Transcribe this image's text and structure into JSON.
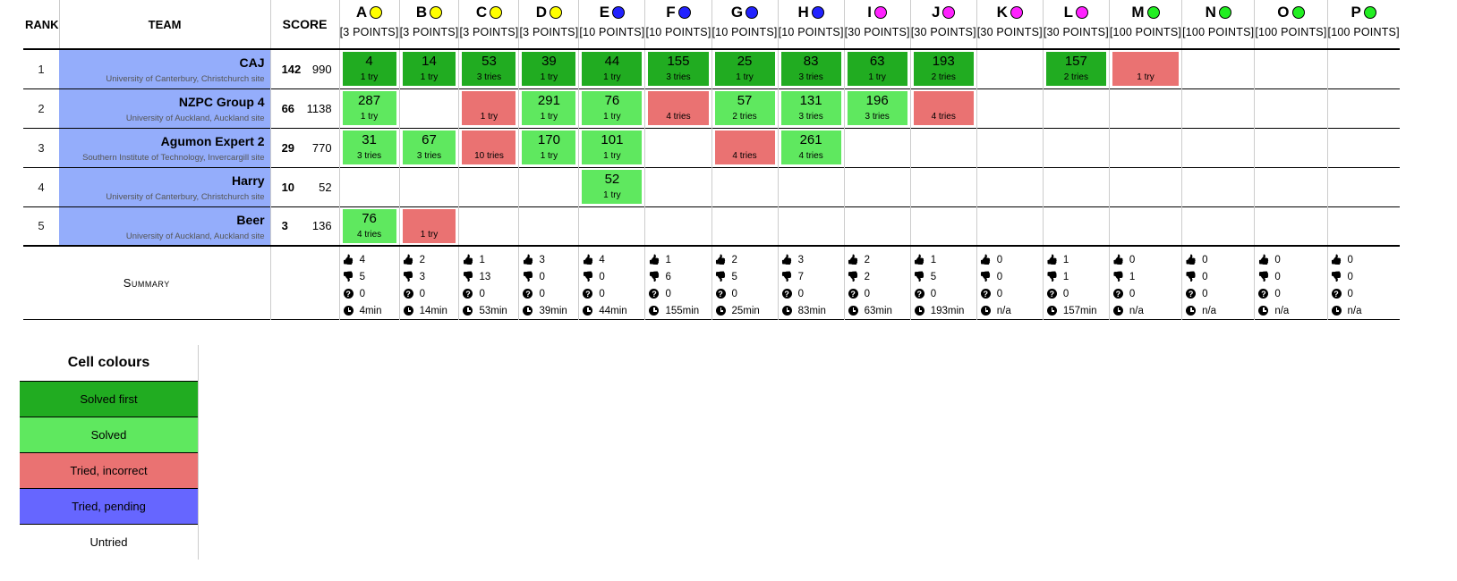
{
  "headers": {
    "rank": "RANK",
    "team": "TEAM",
    "score": "SCORE"
  },
  "problems": [
    {
      "letter": "A",
      "points": "[3 POINTS]",
      "color": "#ffff00"
    },
    {
      "letter": "B",
      "points": "[3 POINTS]",
      "color": "#ffff00"
    },
    {
      "letter": "C",
      "points": "[3 POINTS]",
      "color": "#ffff00"
    },
    {
      "letter": "D",
      "points": "[3 POINTS]",
      "color": "#ffff00"
    },
    {
      "letter": "E",
      "points": "[10 POINTS]",
      "color": "#2222ff"
    },
    {
      "letter": "F",
      "points": "[10 POINTS]",
      "color": "#2222ff"
    },
    {
      "letter": "G",
      "points": "[10 POINTS]",
      "color": "#2222ff"
    },
    {
      "letter": "H",
      "points": "[10 POINTS]",
      "color": "#2222ff"
    },
    {
      "letter": "I",
      "points": "[30 POINTS]",
      "color": "#ff22ff"
    },
    {
      "letter": "J",
      "points": "[30 POINTS]",
      "color": "#ff22ff"
    },
    {
      "letter": "K",
      "points": "[30 POINTS]",
      "color": "#ff22ff"
    },
    {
      "letter": "L",
      "points": "[30 POINTS]",
      "color": "#ff22ff"
    },
    {
      "letter": "M",
      "points": "[100 POINTS]",
      "color": "#22ee22"
    },
    {
      "letter": "N",
      "points": "[100 POINTS]",
      "color": "#22ee22"
    },
    {
      "letter": "O",
      "points": "[100 POINTS]",
      "color": "#22ee22"
    },
    {
      "letter": "P",
      "points": "[100 POINTS]",
      "color": "#22ee22"
    }
  ],
  "teams": [
    {
      "rank": "1",
      "name": "CAJ",
      "site": "University of Canterbury, Christchurch site",
      "solved": "142",
      "time": "990",
      "cells": [
        {
          "status": "first",
          "time": "4",
          "tries": "1 try"
        },
        {
          "status": "first",
          "time": "14",
          "tries": "1 try"
        },
        {
          "status": "first",
          "time": "53",
          "tries": "3 tries"
        },
        {
          "status": "first",
          "time": "39",
          "tries": "1 try"
        },
        {
          "status": "first",
          "time": "44",
          "tries": "1 try"
        },
        {
          "status": "first",
          "time": "155",
          "tries": "3 tries"
        },
        {
          "status": "first",
          "time": "25",
          "tries": "1 try"
        },
        {
          "status": "first",
          "time": "83",
          "tries": "3 tries"
        },
        {
          "status": "first",
          "time": "63",
          "tries": "1 try"
        },
        {
          "status": "first",
          "time": "193",
          "tries": "2 tries"
        },
        {
          "status": "none",
          "time": "",
          "tries": ""
        },
        {
          "status": "first",
          "time": "157",
          "tries": "2 tries"
        },
        {
          "status": "wrong",
          "time": "",
          "tries": "1 try"
        },
        {
          "status": "none",
          "time": "",
          "tries": ""
        },
        {
          "status": "none",
          "time": "",
          "tries": ""
        },
        {
          "status": "none",
          "time": "",
          "tries": ""
        }
      ]
    },
    {
      "rank": "2",
      "name": "NZPC Group 4",
      "site": "University of Auckland, Auckland site",
      "solved": "66",
      "time": "1138",
      "cells": [
        {
          "status": "solved",
          "time": "287",
          "tries": "1 try"
        },
        {
          "status": "none",
          "time": "",
          "tries": ""
        },
        {
          "status": "wrong",
          "time": "",
          "tries": "1 try"
        },
        {
          "status": "solved",
          "time": "291",
          "tries": "1 try"
        },
        {
          "status": "solved",
          "time": "76",
          "tries": "1 try"
        },
        {
          "status": "wrong",
          "time": "",
          "tries": "4 tries"
        },
        {
          "status": "solved",
          "time": "57",
          "tries": "2 tries"
        },
        {
          "status": "solved",
          "time": "131",
          "tries": "3 tries"
        },
        {
          "status": "solved",
          "time": "196",
          "tries": "3 tries"
        },
        {
          "status": "wrong",
          "time": "",
          "tries": "4 tries"
        },
        {
          "status": "none",
          "time": "",
          "tries": ""
        },
        {
          "status": "none",
          "time": "",
          "tries": ""
        },
        {
          "status": "none",
          "time": "",
          "tries": ""
        },
        {
          "status": "none",
          "time": "",
          "tries": ""
        },
        {
          "status": "none",
          "time": "",
          "tries": ""
        },
        {
          "status": "none",
          "time": "",
          "tries": ""
        }
      ]
    },
    {
      "rank": "3",
      "name": "Agumon Expert 2",
      "site": "Southern Institute of Technology, Invercargill site",
      "solved": "29",
      "time": "770",
      "cells": [
        {
          "status": "solved",
          "time": "31",
          "tries": "3 tries"
        },
        {
          "status": "solved",
          "time": "67",
          "tries": "3 tries"
        },
        {
          "status": "wrong",
          "time": "",
          "tries": "10 tries"
        },
        {
          "status": "solved",
          "time": "170",
          "tries": "1 try"
        },
        {
          "status": "solved",
          "time": "101",
          "tries": "1 try"
        },
        {
          "status": "none",
          "time": "",
          "tries": ""
        },
        {
          "status": "wrong",
          "time": "",
          "tries": "4 tries"
        },
        {
          "status": "solved",
          "time": "261",
          "tries": "4 tries"
        },
        {
          "status": "none",
          "time": "",
          "tries": ""
        },
        {
          "status": "none",
          "time": "",
          "tries": ""
        },
        {
          "status": "none",
          "time": "",
          "tries": ""
        },
        {
          "status": "none",
          "time": "",
          "tries": ""
        },
        {
          "status": "none",
          "time": "",
          "tries": ""
        },
        {
          "status": "none",
          "time": "",
          "tries": ""
        },
        {
          "status": "none",
          "time": "",
          "tries": ""
        },
        {
          "status": "none",
          "time": "",
          "tries": ""
        }
      ]
    },
    {
      "rank": "4",
      "name": "Harry",
      "site": "University of Canterbury, Christchurch site",
      "solved": "10",
      "time": "52",
      "cells": [
        {
          "status": "none",
          "time": "",
          "tries": ""
        },
        {
          "status": "none",
          "time": "",
          "tries": ""
        },
        {
          "status": "none",
          "time": "",
          "tries": ""
        },
        {
          "status": "none",
          "time": "",
          "tries": ""
        },
        {
          "status": "solved",
          "time": "52",
          "tries": "1 try"
        },
        {
          "status": "none",
          "time": "",
          "tries": ""
        },
        {
          "status": "none",
          "time": "",
          "tries": ""
        },
        {
          "status": "none",
          "time": "",
          "tries": ""
        },
        {
          "status": "none",
          "time": "",
          "tries": ""
        },
        {
          "status": "none",
          "time": "",
          "tries": ""
        },
        {
          "status": "none",
          "time": "",
          "tries": ""
        },
        {
          "status": "none",
          "time": "",
          "tries": ""
        },
        {
          "status": "none",
          "time": "",
          "tries": ""
        },
        {
          "status": "none",
          "time": "",
          "tries": ""
        },
        {
          "status": "none",
          "time": "",
          "tries": ""
        },
        {
          "status": "none",
          "time": "",
          "tries": ""
        }
      ]
    },
    {
      "rank": "5",
      "name": "Beer",
      "site": "University of Auckland, Auckland site",
      "solved": "3",
      "time": "136",
      "cells": [
        {
          "status": "solved",
          "time": "76",
          "tries": "4 tries"
        },
        {
          "status": "wrong",
          "time": "",
          "tries": "1 try"
        },
        {
          "status": "none",
          "time": "",
          "tries": ""
        },
        {
          "status": "none",
          "time": "",
          "tries": ""
        },
        {
          "status": "none",
          "time": "",
          "tries": ""
        },
        {
          "status": "none",
          "time": "",
          "tries": ""
        },
        {
          "status": "none",
          "time": "",
          "tries": ""
        },
        {
          "status": "none",
          "time": "",
          "tries": ""
        },
        {
          "status": "none",
          "time": "",
          "tries": ""
        },
        {
          "status": "none",
          "time": "",
          "tries": ""
        },
        {
          "status": "none",
          "time": "",
          "tries": ""
        },
        {
          "status": "none",
          "time": "",
          "tries": ""
        },
        {
          "status": "none",
          "time": "",
          "tries": ""
        },
        {
          "status": "none",
          "time": "",
          "tries": ""
        },
        {
          "status": "none",
          "time": "",
          "tries": ""
        },
        {
          "status": "none",
          "time": "",
          "tries": ""
        }
      ]
    }
  ],
  "summary": {
    "label": "Summary",
    "icons": {
      "correct": "thumbs-up-icon",
      "incorrect": "thumbs-down-icon",
      "pending": "question-icon",
      "first_solve": "clock-icon"
    },
    "columns": [
      {
        "up": "4",
        "down": "5",
        "pending": "0",
        "first": "4min"
      },
      {
        "up": "2",
        "down": "3",
        "pending": "0",
        "first": "14min"
      },
      {
        "up": "1",
        "down": "13",
        "pending": "0",
        "first": "53min"
      },
      {
        "up": "3",
        "down": "0",
        "pending": "0",
        "first": "39min"
      },
      {
        "up": "4",
        "down": "0",
        "pending": "0",
        "first": "44min"
      },
      {
        "up": "1",
        "down": "6",
        "pending": "0",
        "first": "155min"
      },
      {
        "up": "2",
        "down": "5",
        "pending": "0",
        "first": "25min"
      },
      {
        "up": "3",
        "down": "7",
        "pending": "0",
        "first": "83min"
      },
      {
        "up": "2",
        "down": "2",
        "pending": "0",
        "first": "63min"
      },
      {
        "up": "1",
        "down": "5",
        "pending": "0",
        "first": "193min"
      },
      {
        "up": "0",
        "down": "0",
        "pending": "0",
        "first": "n/a"
      },
      {
        "up": "1",
        "down": "1",
        "pending": "0",
        "first": "157min"
      },
      {
        "up": "0",
        "down": "1",
        "pending": "0",
        "first": "n/a"
      },
      {
        "up": "0",
        "down": "0",
        "pending": "0",
        "first": "n/a"
      },
      {
        "up": "0",
        "down": "0",
        "pending": "0",
        "first": "n/a"
      },
      {
        "up": "0",
        "down": "0",
        "pending": "0",
        "first": "n/a"
      }
    ]
  },
  "legend": {
    "title": "Cell colours",
    "items": [
      {
        "key": "first",
        "label": "Solved first",
        "color": "#21ac21"
      },
      {
        "key": "solved",
        "label": "Solved",
        "color": "#5fe85f"
      },
      {
        "key": "wrong",
        "label": "Tried, incorrect",
        "color": "#ea7272"
      },
      {
        "key": "pending",
        "label": "Tried, pending",
        "color": "#6666ff"
      },
      {
        "key": "untried",
        "label": "Untried",
        "color": "#ffffff"
      }
    ]
  }
}
